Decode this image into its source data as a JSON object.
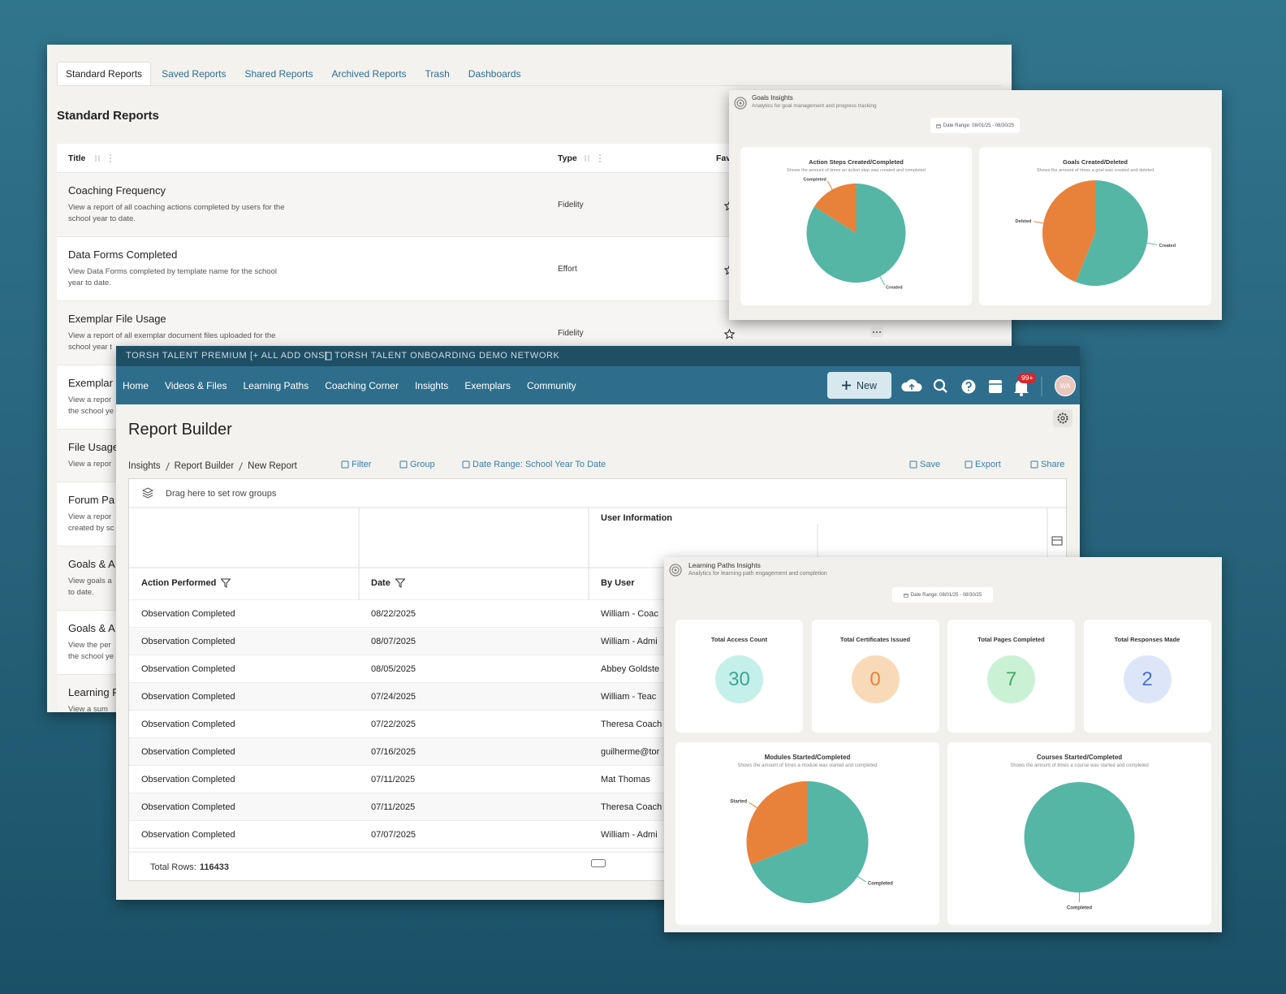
{
  "reports_panel": {
    "tabs": [
      "Standard Reports",
      "Saved Reports",
      "Shared Reports",
      "Archived Reports",
      "Trash",
      "Dashboards"
    ],
    "heading": "Standard Reports",
    "columns": [
      "Title",
      "Type",
      "Fav"
    ],
    "rows": [
      {
        "title": "Coaching Frequency",
        "description": [
          "View a report of all coaching actions completed by users for the",
          "school year to date."
        ],
        "type": "Fidelity"
      },
      {
        "title": "Data Forms Completed",
        "description": [
          "View Data Forms completed by template name for the school",
          "year to date."
        ],
        "type": "Effort"
      },
      {
        "title": "Exemplar File Usage",
        "description": [
          "View a report of all exemplar document files uploaded for the",
          "school year t"
        ],
        "type": "Fidelity"
      },
      {
        "title": "Exemplar",
        "description": [
          "View a repor",
          "the school ye"
        ]
      },
      {
        "title": "File Usage",
        "description": [
          "View a repor"
        ]
      },
      {
        "title": "Forum Pa",
        "description": [
          "View a repor",
          "created by sc"
        ]
      },
      {
        "title": "Goals & A",
        "description": [
          "View goals a",
          "to date."
        ]
      },
      {
        "title": "Goals & A",
        "description": [
          "View the per",
          "the school ye"
        ]
      },
      {
        "title": "Learning P",
        "description": [
          "View a sum"
        ]
      }
    ]
  },
  "goals_insights": {
    "title": "Goals Insights",
    "subtitle": "Analytics for goal management and progress tracking",
    "date_range": "Date Range: 08/01/25 - 08/30/25",
    "chart_data": [
      {
        "type": "pie",
        "title": "Action Steps Created/Completed",
        "subtitle": "Shows the amount of times an action step was created and completed",
        "categories": [
          "Created",
          "Completed"
        ],
        "values": [
          84,
          16
        ],
        "colors": [
          "#55b6a6",
          "#e8813a"
        ]
      },
      {
        "type": "pie",
        "title": "Goals Created/Deleted",
        "subtitle": "Shows the amount of times a goal was created and deleted",
        "categories": [
          "Created",
          "Deleted"
        ],
        "values": [
          56,
          44
        ],
        "colors": [
          "#55b6a6",
          "#e8813a"
        ]
      }
    ]
  },
  "report_builder": {
    "plan": "TORSH TALENT PREMIUM [+ ALL ADD ONS]",
    "network": "TORSH TALENT ONBOARDING DEMO NETWORK",
    "nav": [
      "Home",
      "Videos & Files",
      "Learning Paths",
      "Coaching Corner",
      "Insights",
      "Exemplars",
      "Community"
    ],
    "new_button": "New",
    "notification_badge": "99+",
    "avatar": "WA",
    "title": "Report Builder",
    "breadcrumb": [
      "Insights",
      "Report Builder",
      "New Report"
    ],
    "toolbar_left": [
      "Filter",
      "Group",
      "Date Range: School Year To Date"
    ],
    "toolbar_right": [
      "Save",
      "Export",
      "Share"
    ],
    "grid": {
      "group_drop": "Drag here to set row groups",
      "column_group": "User Information",
      "columns": [
        "Action Performed",
        "Date",
        "By User"
      ],
      "rows": [
        [
          "Observation Completed",
          "08/22/2025",
          "William - Coac"
        ],
        [
          "Observation Completed",
          "08/07/2025",
          "William - Admi"
        ],
        [
          "Observation Completed",
          "08/05/2025",
          "Abbey Goldste"
        ],
        [
          "Observation Completed",
          "07/24/2025",
          "William - Teac"
        ],
        [
          "Observation Completed",
          "07/22/2025",
          "Theresa Coach"
        ],
        [
          "Observation Completed",
          "07/16/2025",
          "guilherme@tor"
        ],
        [
          "Observation Completed",
          "07/11/2025",
          "Mat Thomas"
        ],
        [
          "Observation Completed",
          "07/11/2025",
          "Theresa Coach"
        ],
        [
          "Observation Completed",
          "07/07/2025",
          "William - Admi"
        ]
      ],
      "total_label": "Total Rows:",
      "total_rows": 116433
    }
  },
  "learning_paths_insights": {
    "title": "Learning Paths Insights",
    "subtitle": "Analytics for learning path engagement and completion",
    "date_range": "Date Range: 08/01/25 - 08/30/25",
    "stats": [
      {
        "label": "Total Access Count",
        "value": 30
      },
      {
        "label": "Total Certificates Issued",
        "value": 0
      },
      {
        "label": "Total Pages Completed",
        "value": 7
      },
      {
        "label": "Total Responses Made",
        "value": 2
      }
    ],
    "chart_data": [
      {
        "type": "pie",
        "title": "Modules Started/Completed",
        "subtitle": "Shows the amount of times a module was started and completed",
        "categories": [
          "Completed",
          "Started"
        ],
        "values": [
          69,
          31
        ],
        "colors": [
          "#55b6a6",
          "#e8813a"
        ]
      },
      {
        "type": "pie",
        "title": "Courses Started/Completed",
        "subtitle": "Shows the amount of times a course was started and completed",
        "categories": [
          "Completed"
        ],
        "values": [
          100
        ],
        "colors": [
          "#55b6a6"
        ]
      }
    ]
  }
}
